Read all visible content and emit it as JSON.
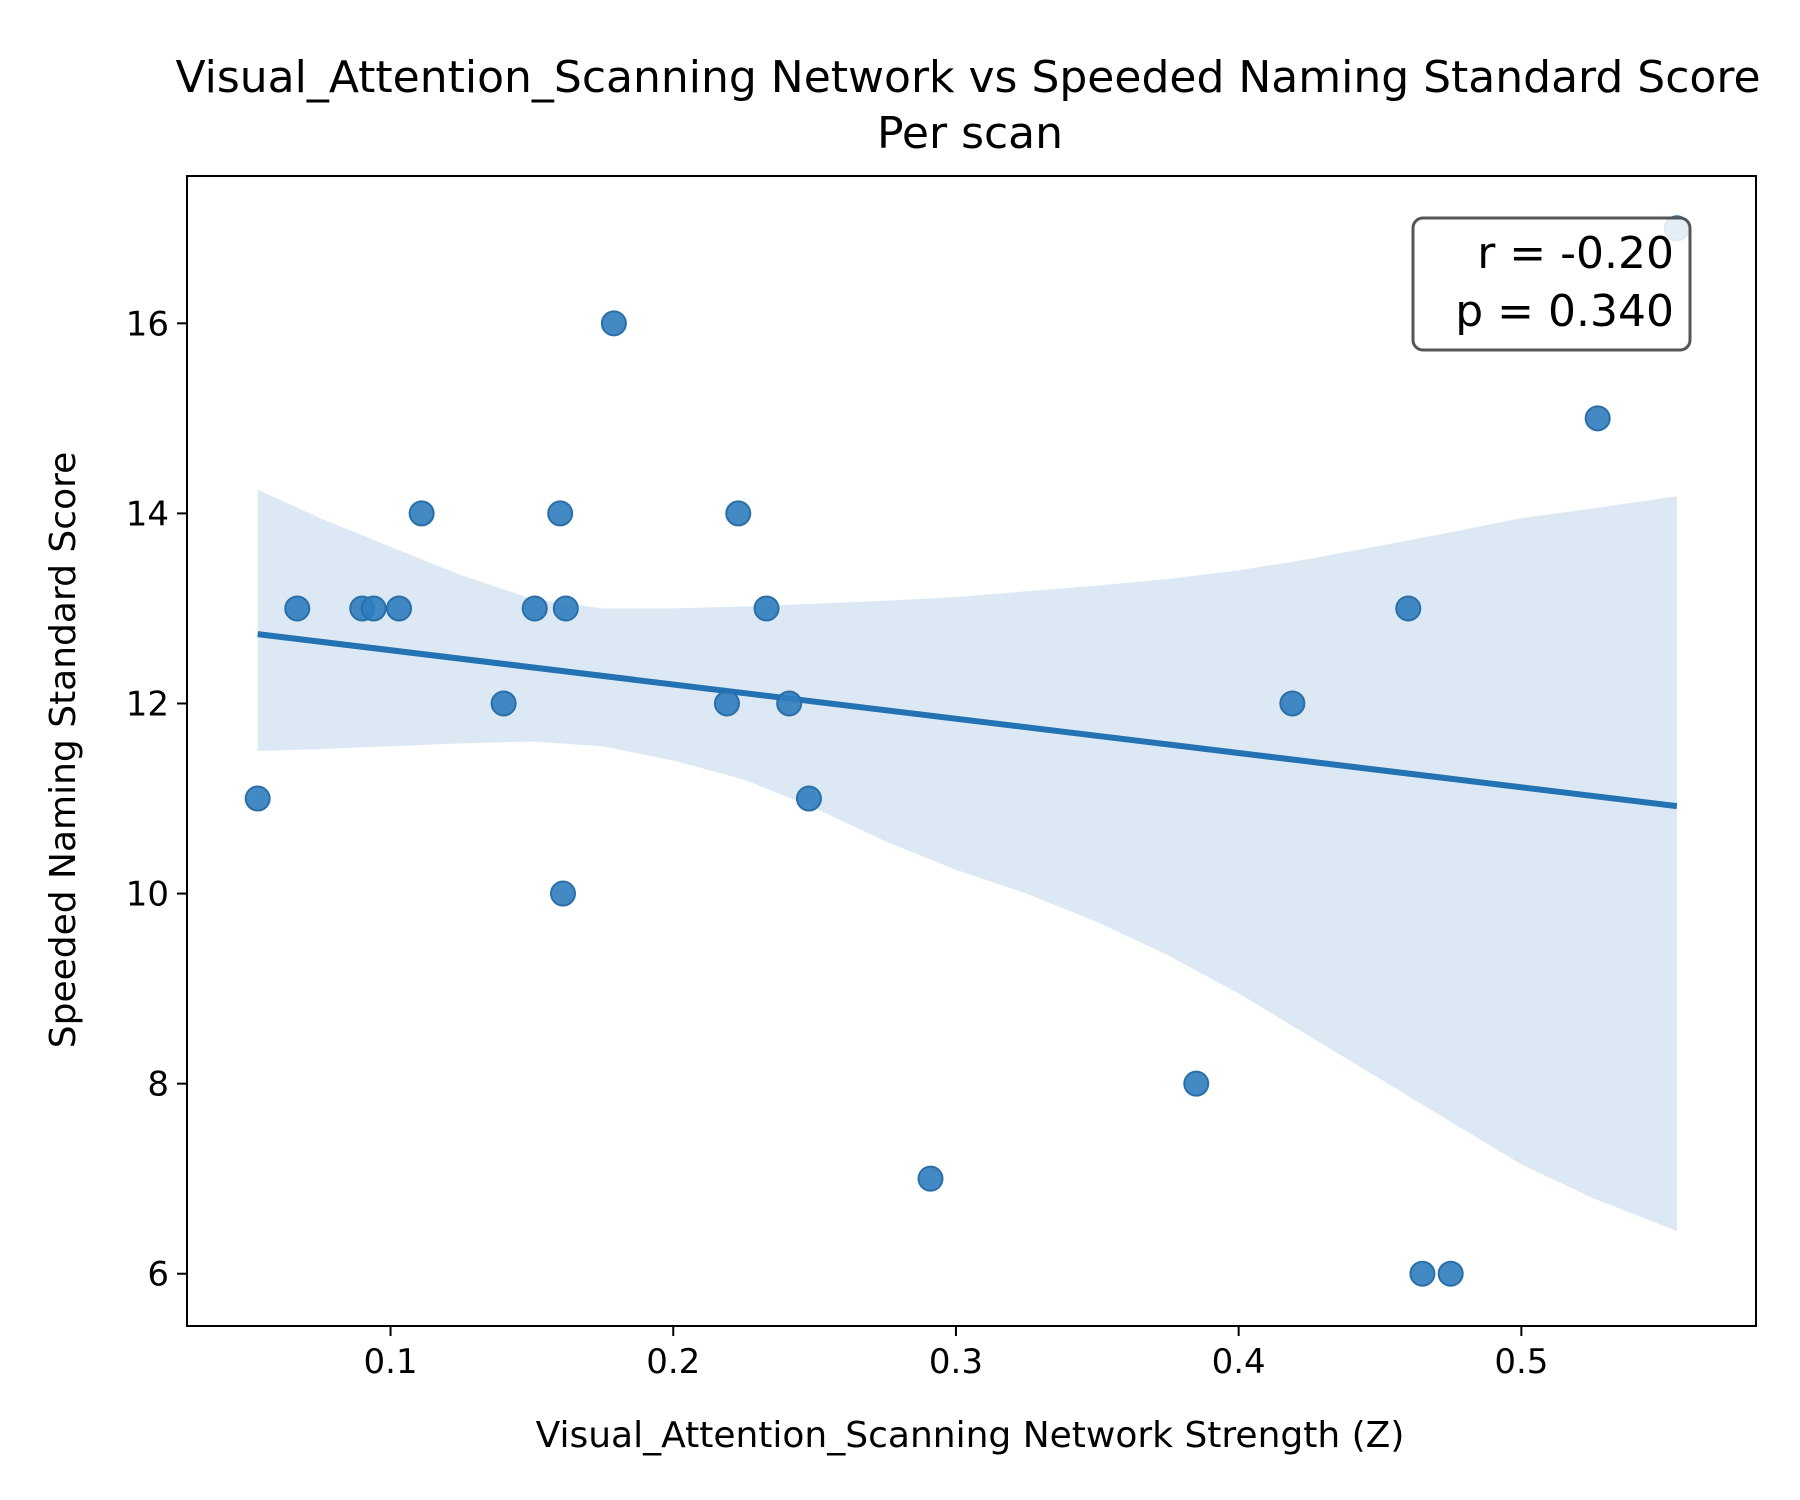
{
  "chart_data": {
    "type": "scatter",
    "title_line1": "Visual_Attention_Scanning Network vs Speeded Naming Standard Score",
    "title_line2": "Per scan",
    "xlabel": "Visual_Attention_Scanning Network Strength (Z)",
    "ylabel": "Speeded Naming Standard Score",
    "xlim": [
      0.028,
      0.583
    ],
    "ylim": [
      5.45,
      17.55
    ],
    "x_ticks": [
      0.1,
      0.2,
      0.3,
      0.4,
      0.5
    ],
    "x_tick_labels": [
      "0.1",
      "0.2",
      "0.3",
      "0.4",
      "0.5"
    ],
    "y_ticks": [
      6,
      8,
      10,
      12,
      14,
      16
    ],
    "y_tick_labels": [
      "6",
      "8",
      "10",
      "12",
      "14",
      "16"
    ],
    "grid": false,
    "points": [
      {
        "x": 0.053,
        "y": 11
      },
      {
        "x": 0.067,
        "y": 13
      },
      {
        "x": 0.09,
        "y": 13
      },
      {
        "x": 0.094,
        "y": 13
      },
      {
        "x": 0.103,
        "y": 13
      },
      {
        "x": 0.111,
        "y": 14
      },
      {
        "x": 0.14,
        "y": 12
      },
      {
        "x": 0.151,
        "y": 13
      },
      {
        "x": 0.16,
        "y": 14
      },
      {
        "x": 0.161,
        "y": 10
      },
      {
        "x": 0.162,
        "y": 13
      },
      {
        "x": 0.179,
        "y": 16
      },
      {
        "x": 0.219,
        "y": 12
      },
      {
        "x": 0.223,
        "y": 14
      },
      {
        "x": 0.233,
        "y": 13
      },
      {
        "x": 0.241,
        "y": 12
      },
      {
        "x": 0.248,
        "y": 11
      },
      {
        "x": 0.291,
        "y": 7
      },
      {
        "x": 0.385,
        "y": 8
      },
      {
        "x": 0.419,
        "y": 12
      },
      {
        "x": 0.46,
        "y": 13
      },
      {
        "x": 0.465,
        "y": 6
      },
      {
        "x": 0.475,
        "y": 6
      },
      {
        "x": 0.527,
        "y": 15
      },
      {
        "x": 0.555,
        "y": 17
      }
    ],
    "regression": {
      "x_start": 0.053,
      "y_start": 12.73,
      "x_end": 0.555,
      "y_end": 10.92
    },
    "confidence_band": {
      "x": [
        0.053,
        0.075,
        0.1,
        0.125,
        0.15,
        0.175,
        0.2,
        0.225,
        0.25,
        0.275,
        0.3,
        0.325,
        0.35,
        0.375,
        0.4,
        0.425,
        0.45,
        0.475,
        0.5,
        0.525,
        0.555
      ],
      "upper": [
        14.25,
        13.95,
        13.65,
        13.35,
        13.1,
        13.0,
        13.0,
        13.02,
        13.05,
        13.08,
        13.12,
        13.18,
        13.24,
        13.31,
        13.4,
        13.52,
        13.66,
        13.8,
        13.95,
        14.05,
        14.18
      ],
      "lower": [
        11.5,
        11.52,
        11.55,
        11.58,
        11.6,
        11.55,
        11.4,
        11.2,
        10.9,
        10.55,
        10.25,
        10.0,
        9.7,
        9.35,
        8.95,
        8.5,
        8.05,
        7.6,
        7.15,
        6.8,
        6.45
      ]
    },
    "stats_box": {
      "line1": "r = -0.20",
      "line2": "p = 0.340",
      "placement": "top-right"
    },
    "colors": {
      "point": "#2f7dbf",
      "point_edge": "#2a6fa8",
      "line": "#2272b4",
      "band": "#dce8f3"
    }
  }
}
